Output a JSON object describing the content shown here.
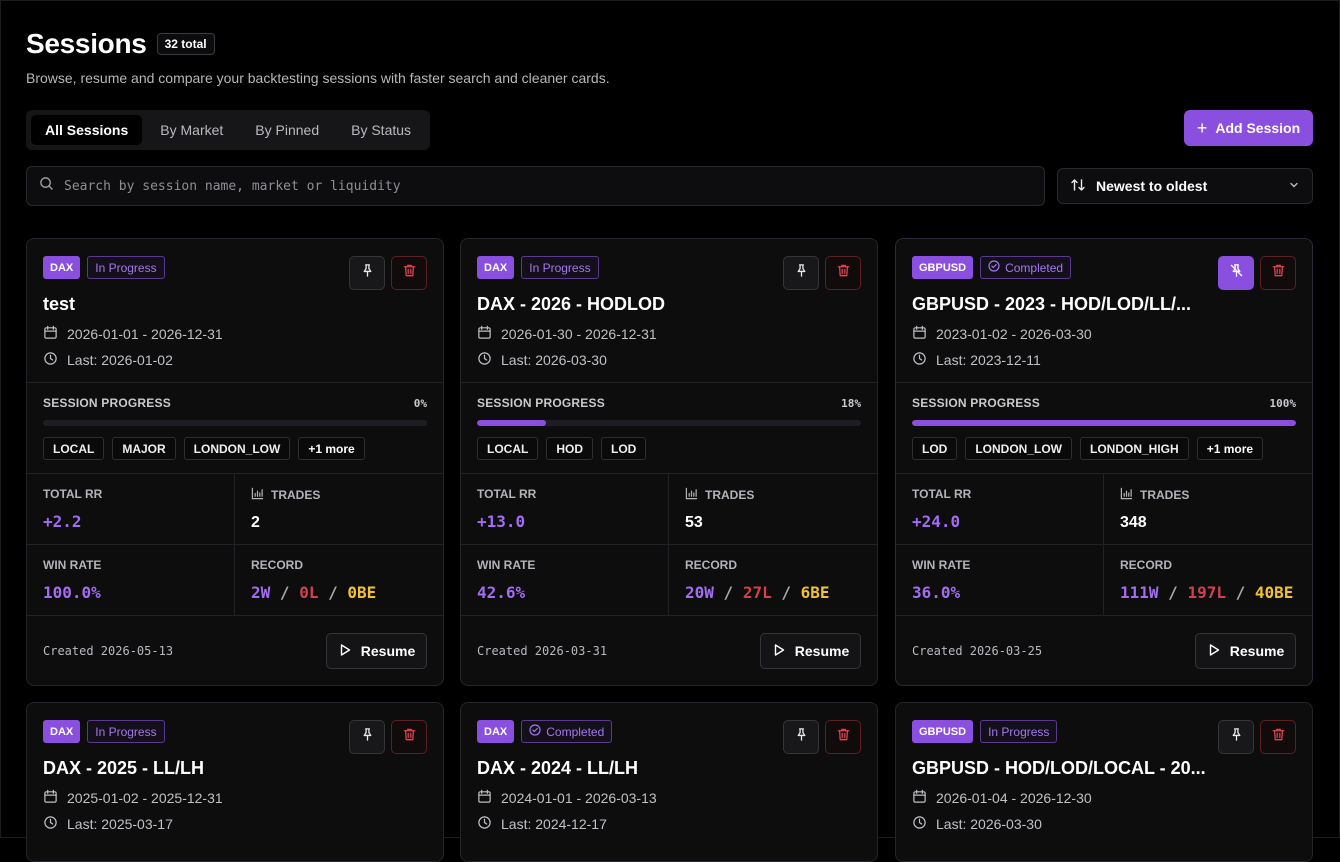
{
  "header": {
    "title": "Sessions",
    "count_badge": "32 total",
    "subtitle": "Browse, resume and compare your backtesting sessions with faster search and cleaner cards."
  },
  "tabs": [
    {
      "label": "All Sessions",
      "active": true
    },
    {
      "label": "By Market",
      "active": false
    },
    {
      "label": "By Pinned",
      "active": false
    },
    {
      "label": "By Status",
      "active": false
    }
  ],
  "add_button_label": "Add Session",
  "search": {
    "placeholder": "Search by session name, market or liquidity",
    "value": ""
  },
  "sort": {
    "selected": "Newest to oldest"
  },
  "labels": {
    "session_progress": "SESSION PROGRESS",
    "total_rr": "TOTAL RR",
    "trades": "TRADES",
    "win_rate": "WIN RATE",
    "record": "RECORD",
    "resume": "Resume",
    "record_sep": "/"
  },
  "colors": {
    "accent": "#8b4fe0",
    "loss": "#d1414b",
    "breakeven": "#f2c12e"
  },
  "cards": [
    {
      "market": "DAX",
      "status": "In Progress",
      "status_icon": "",
      "pinned": false,
      "name": "test",
      "date_range": "2026-01-01 - 2026-12-31",
      "last": "Last: 2026-01-02",
      "progress_label": "0%",
      "progress": 0,
      "tags": [
        "LOCAL",
        "MAJOR",
        "LONDON_LOW",
        "+1 more"
      ],
      "total_rr": "+2.2",
      "trades": "2",
      "win_rate": "100.0%",
      "record_w": "2W",
      "record_l": "0L",
      "record_be": "0BE",
      "created": "Created 2026-05-13"
    },
    {
      "market": "DAX",
      "status": "In Progress",
      "status_icon": "",
      "pinned": false,
      "name": "DAX - 2026 - HODLOD",
      "date_range": "2026-01-30 - 2026-12-31",
      "last": "Last: 2026-03-30",
      "progress_label": "18%",
      "progress": 18,
      "tags": [
        "LOCAL",
        "HOD",
        "LOD"
      ],
      "total_rr": "+13.0",
      "trades": "53",
      "win_rate": "42.6%",
      "record_w": "20W",
      "record_l": "27L",
      "record_be": "6BE",
      "created": "Created 2026-03-31"
    },
    {
      "market": "GBPUSD",
      "status": "Completed",
      "status_icon": "check-circle-icon",
      "pinned": true,
      "name": "GBPUSD - 2023 - HOD/LOD/LL/...",
      "date_range": "2023-01-02 - 2026-03-30",
      "last": "Last: 2023-12-11",
      "progress_label": "100%",
      "progress": 100,
      "tags": [
        "LOD",
        "LONDON_LOW",
        "LONDON_HIGH",
        "+1 more"
      ],
      "total_rr": "+24.0",
      "trades": "348",
      "win_rate": "36.0%",
      "record_w": "111W",
      "record_l": "197L",
      "record_be": "40BE",
      "created": "Created 2026-03-25"
    },
    {
      "market": "DAX",
      "status": "In Progress",
      "status_icon": "",
      "pinned": false,
      "name": "DAX - 2025 - LL/LH",
      "date_range": "2025-01-02 - 2025-12-31",
      "last": "Last: 2025-03-17"
    },
    {
      "market": "DAX",
      "status": "Completed",
      "status_icon": "check-circle-icon",
      "pinned": false,
      "name": "DAX - 2024 - LL/LH",
      "date_range": "2024-01-01 - 2026-03-13",
      "last": "Last: 2024-12-17"
    },
    {
      "market": "GBPUSD",
      "status": "In Progress",
      "status_icon": "",
      "pinned": false,
      "name": "GBPUSD - HOD/LOD/LOCAL - 20...",
      "date_range": "2026-01-04 - 2026-12-30",
      "last": "Last: 2026-03-30"
    }
  ]
}
